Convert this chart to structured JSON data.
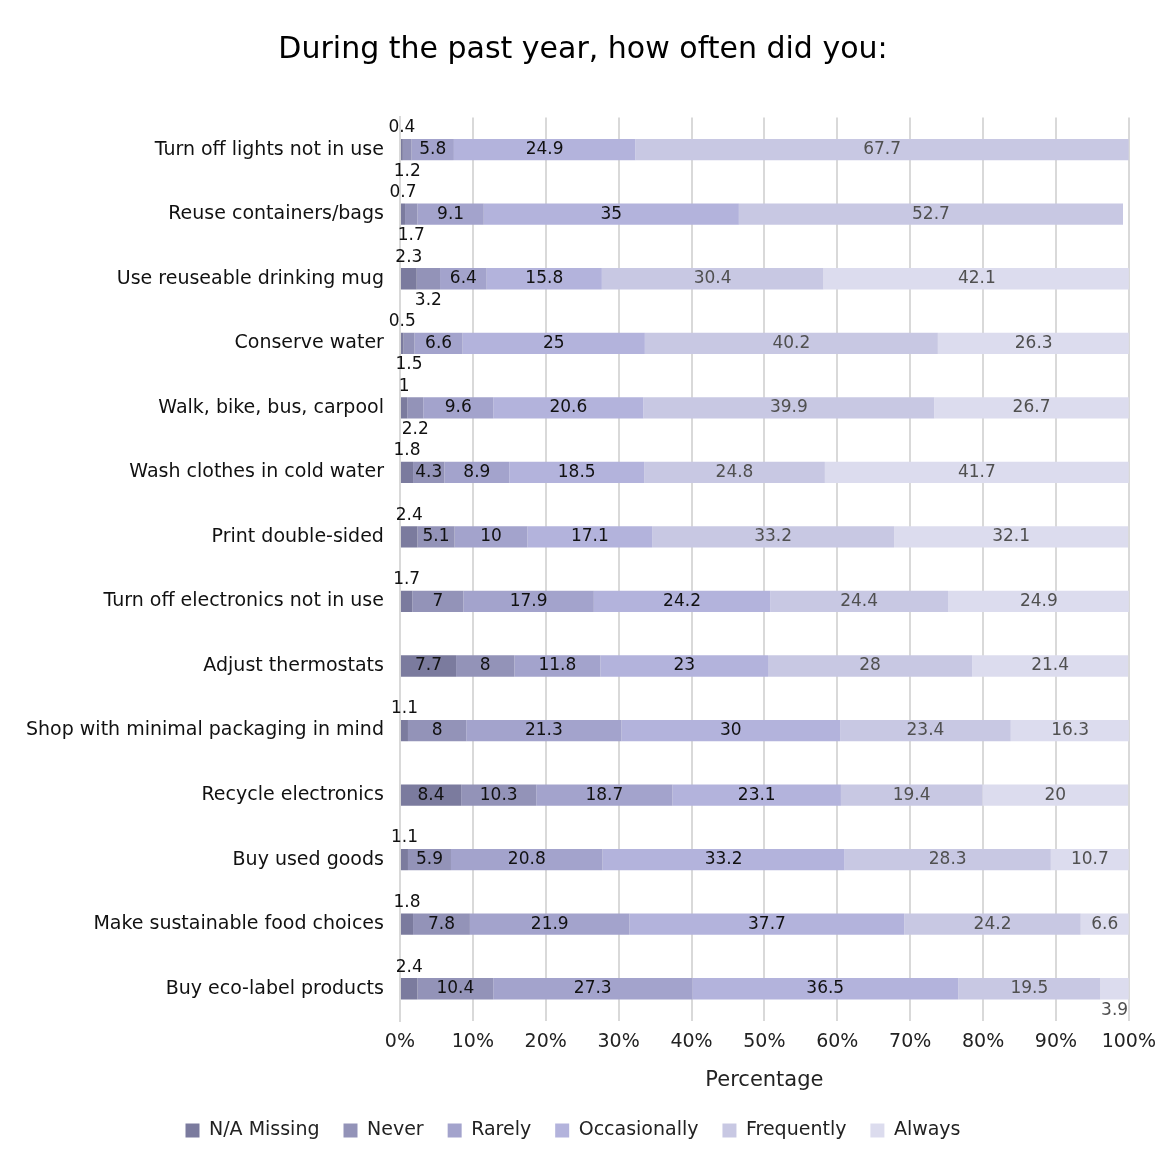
{
  "chart_data": {
    "type": "bar",
    "orientation": "horizontal",
    "stacked": true,
    "title": "During the past year, how often did you:",
    "xlabel": "Percentage",
    "categories": [
      "Turn off lights not in use",
      "Reuse containers/bags",
      "Use reuseable drinking mug",
      "Conserve water",
      "Walk, bike, bus, carpool",
      "Wash clothes in cold water",
      "Print double-sided",
      "Turn off electronics not in use",
      "Adjust thermostats",
      "Shop with minimal packaging in mind",
      "Recycle electronics",
      "Buy used goods",
      "Make sustainable food choices",
      "Buy eco-label products"
    ],
    "series": [
      {
        "name": "N/A Missing",
        "color": "#7b7b9e",
        "values": [
          0.4,
          0.7,
          2.3,
          0.5,
          1,
          1.8,
          2.4,
          1.7,
          7.7,
          1.1,
          8.4,
          1.1,
          1.8,
          2.4
        ]
      },
      {
        "name": "Never",
        "color": "#9393b8",
        "values": [
          1.2,
          1.7,
          3.2,
          1.5,
          2.2,
          4.3,
          5.1,
          7,
          8,
          8,
          10.3,
          5.9,
          7.8,
          10.4
        ]
      },
      {
        "name": "Rarely",
        "color": "#a3a3cc",
        "values": [
          5.8,
          9.1,
          6.4,
          6.6,
          9.6,
          8.9,
          10,
          17.9,
          11.8,
          21.3,
          18.7,
          20.8,
          21.9,
          27.3
        ]
      },
      {
        "name": "Occasionally",
        "color": "#b3b3dc",
        "values": [
          24.9,
          35,
          15.8,
          25,
          20.6,
          18.5,
          17.1,
          24.2,
          23,
          30,
          23.1,
          33.2,
          37.7,
          36.5
        ]
      },
      {
        "name": "Frequently",
        "color": "#c8c8e3",
        "values": [
          67.7,
          52.7,
          30.4,
          40.2,
          39.9,
          24.8,
          33.2,
          24.4,
          28,
          23.4,
          19.4,
          28.3,
          24.2,
          19.5
        ]
      },
      {
        "name": "Always",
        "color": "#dcdcee",
        "values": [
          null,
          null,
          42.1,
          26.3,
          26.7,
          41.7,
          32.1,
          24.9,
          21.4,
          16.3,
          20,
          10.7,
          6.6,
          3.9
        ]
      }
    ],
    "xlim": [
      0,
      100
    ],
    "xticks": [
      {
        "value": 0,
        "label": "0%"
      },
      {
        "value": 10,
        "label": "10%"
      },
      {
        "value": 20,
        "label": "20%"
      },
      {
        "value": 30,
        "label": "30%"
      },
      {
        "value": 40,
        "label": "40%"
      },
      {
        "value": 50,
        "label": "50%"
      },
      {
        "value": 60,
        "label": "60%"
      },
      {
        "value": 70,
        "label": "70%"
      },
      {
        "value": 80,
        "label": "80%"
      },
      {
        "value": 90,
        "label": "90%"
      },
      {
        "value": 100,
        "label": "100%"
      }
    ],
    "grid": "x",
    "legend": "bottom",
    "data_labels": true
  }
}
